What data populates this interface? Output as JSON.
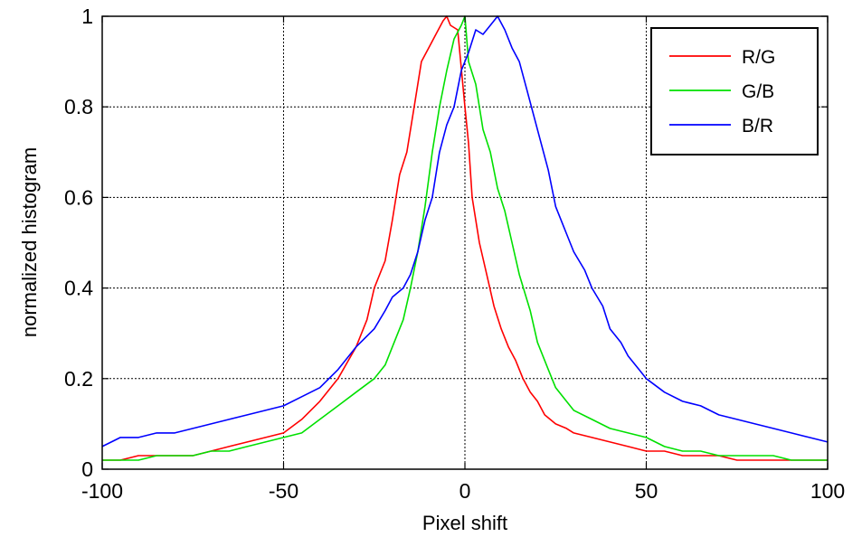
{
  "chart_data": {
    "type": "line",
    "title": "",
    "xlabel": "Pixel shift",
    "ylabel": "normalized histogram",
    "xlim": [
      -100,
      100
    ],
    "ylim": [
      0,
      1
    ],
    "xticks": [
      -100,
      -50,
      0,
      50,
      100
    ],
    "yticks": [
      0,
      0.2,
      0.4,
      0.6,
      0.8,
      1
    ],
    "xtick_labels": [
      "-100",
      "-50",
      "0",
      "50",
      "100"
    ],
    "ytick_labels": [
      "0",
      "0.2",
      "0.4",
      "0.6",
      "0.8",
      "1"
    ],
    "grid": true,
    "legend_position": "top-right",
    "series": [
      {
        "name": "R/G",
        "color": "#ff0000",
        "x": [
          -100,
          -95,
          -90,
          -85,
          -80,
          -75,
          -70,
          -65,
          -60,
          -55,
          -50,
          -45,
          -40,
          -35,
          -30,
          -27,
          -25,
          -22,
          -20,
          -18,
          -16,
          -14,
          -12,
          -10,
          -8,
          -6,
          -5,
          -4,
          -2,
          0,
          1,
          2,
          4,
          6,
          8,
          10,
          12,
          14,
          16,
          18,
          20,
          22,
          25,
          28,
          30,
          35,
          40,
          45,
          50,
          55,
          60,
          65,
          70,
          75,
          80,
          85,
          90,
          95,
          100
        ],
        "y": [
          0.02,
          0.02,
          0.03,
          0.03,
          0.03,
          0.03,
          0.04,
          0.05,
          0.06,
          0.07,
          0.08,
          0.11,
          0.15,
          0.2,
          0.27,
          0.33,
          0.4,
          0.46,
          0.55,
          0.65,
          0.7,
          0.8,
          0.9,
          0.93,
          0.96,
          0.99,
          1.0,
          0.98,
          0.97,
          0.8,
          0.72,
          0.6,
          0.5,
          0.43,
          0.36,
          0.31,
          0.27,
          0.24,
          0.2,
          0.17,
          0.15,
          0.12,
          0.1,
          0.09,
          0.08,
          0.07,
          0.06,
          0.05,
          0.04,
          0.04,
          0.03,
          0.03,
          0.03,
          0.02,
          0.02,
          0.02,
          0.02,
          0.02,
          0.02
        ]
      },
      {
        "name": "G/B",
        "color": "#00e000",
        "x": [
          -100,
          -95,
          -90,
          -85,
          -80,
          -75,
          -70,
          -65,
          -60,
          -55,
          -50,
          -45,
          -40,
          -35,
          -30,
          -25,
          -22,
          -20,
          -17,
          -15,
          -13,
          -11,
          -9,
          -7,
          -5,
          -3,
          -1,
          0,
          1,
          3,
          5,
          7,
          9,
          11,
          13,
          15,
          18,
          20,
          23,
          25,
          28,
          30,
          35,
          40,
          45,
          50,
          55,
          60,
          65,
          70,
          75,
          80,
          85,
          90,
          95,
          100
        ],
        "y": [
          0.02,
          0.02,
          0.02,
          0.03,
          0.03,
          0.03,
          0.04,
          0.04,
          0.05,
          0.06,
          0.07,
          0.08,
          0.11,
          0.14,
          0.17,
          0.2,
          0.23,
          0.27,
          0.33,
          0.4,
          0.48,
          0.58,
          0.7,
          0.8,
          0.88,
          0.95,
          0.98,
          1.0,
          0.9,
          0.85,
          0.75,
          0.7,
          0.62,
          0.57,
          0.5,
          0.43,
          0.35,
          0.28,
          0.22,
          0.18,
          0.15,
          0.13,
          0.11,
          0.09,
          0.08,
          0.07,
          0.05,
          0.04,
          0.04,
          0.03,
          0.03,
          0.03,
          0.03,
          0.02,
          0.02,
          0.02
        ]
      },
      {
        "name": "B/R",
        "color": "#0000ff",
        "x": [
          -100,
          -95,
          -90,
          -85,
          -80,
          -75,
          -70,
          -65,
          -60,
          -55,
          -50,
          -45,
          -40,
          -35,
          -30,
          -25,
          -22,
          -20,
          -17,
          -15,
          -13,
          -11,
          -9,
          -7,
          -5,
          -3,
          -1,
          1,
          3,
          5,
          7,
          9,
          11,
          13,
          15,
          17,
          20,
          23,
          25,
          28,
          30,
          33,
          35,
          38,
          40,
          43,
          45,
          48,
          50,
          55,
          60,
          65,
          70,
          75,
          80,
          85,
          90,
          95,
          100
        ],
        "y": [
          0.05,
          0.07,
          0.07,
          0.08,
          0.08,
          0.09,
          0.1,
          0.11,
          0.12,
          0.13,
          0.14,
          0.16,
          0.18,
          0.22,
          0.27,
          0.31,
          0.35,
          0.38,
          0.4,
          0.43,
          0.48,
          0.55,
          0.6,
          0.7,
          0.76,
          0.8,
          0.88,
          0.92,
          0.97,
          0.96,
          0.98,
          1.0,
          0.97,
          0.93,
          0.9,
          0.84,
          0.75,
          0.66,
          0.58,
          0.52,
          0.48,
          0.44,
          0.4,
          0.36,
          0.31,
          0.28,
          0.25,
          0.22,
          0.2,
          0.17,
          0.15,
          0.14,
          0.12,
          0.11,
          0.1,
          0.09,
          0.08,
          0.07,
          0.06
        ]
      }
    ]
  }
}
